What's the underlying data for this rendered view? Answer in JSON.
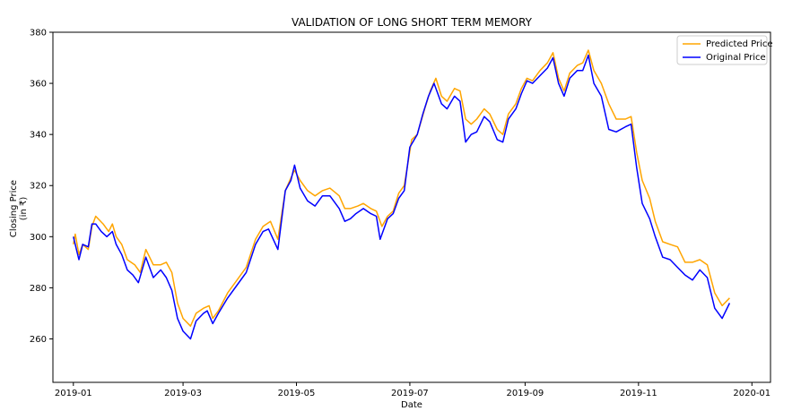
{
  "chart_data": {
    "type": "line",
    "title": "VALIDATION OF LONG SHORT TERM MEMORY",
    "xlabel": "Date",
    "ylabel": "Closing Price",
    "ylabel_unit": "(in ₹)",
    "xlim": [
      "2018-12-21",
      "2020-01-11"
    ],
    "ylim": [
      243,
      380
    ],
    "x_ticks": [
      {
        "value": "2019-01-01",
        "label": "2019-01"
      },
      {
        "value": "2019-03-01",
        "label": "2019-03"
      },
      {
        "value": "2019-05-01",
        "label": "2019-05"
      },
      {
        "value": "2019-07-01",
        "label": "2019-07"
      },
      {
        "value": "2019-09-01",
        "label": "2019-09"
      },
      {
        "value": "2019-11-01",
        "label": "2019-11"
      },
      {
        "value": "2020-01-01",
        "label": "2020-01"
      }
    ],
    "y_ticks": [
      260,
      280,
      300,
      320,
      340,
      360,
      380
    ],
    "legend_position": "top-right",
    "grid": false,
    "series": [
      {
        "name": "Predicted Price",
        "color": "#FFA500",
        "points": [
          [
            "2019-01-01",
            297
          ],
          [
            "2019-01-02",
            301
          ],
          [
            "2019-01-04",
            293
          ],
          [
            "2019-01-06",
            297
          ],
          [
            "2019-01-09",
            295
          ],
          [
            "2019-01-11",
            304
          ],
          [
            "2019-01-13",
            308
          ],
          [
            "2019-01-17",
            305
          ],
          [
            "2019-01-20",
            302
          ],
          [
            "2019-01-22",
            305
          ],
          [
            "2019-01-24",
            300
          ],
          [
            "2019-01-27",
            297
          ],
          [
            "2019-01-30",
            291
          ],
          [
            "2019-02-03",
            289
          ],
          [
            "2019-02-06",
            286
          ],
          [
            "2019-02-09",
            295
          ],
          [
            "2019-02-13",
            289
          ],
          [
            "2019-02-17",
            289
          ],
          [
            "2019-02-20",
            290
          ],
          [
            "2019-02-23",
            286
          ],
          [
            "2019-02-26",
            274
          ],
          [
            "2019-03-01",
            268
          ],
          [
            "2019-03-05",
            265
          ],
          [
            "2019-03-08",
            270
          ],
          [
            "2019-03-12",
            272
          ],
          [
            "2019-03-15",
            273
          ],
          [
            "2019-03-17",
            268
          ],
          [
            "2019-03-20",
            271
          ],
          [
            "2019-03-25",
            278
          ],
          [
            "2019-03-30",
            283
          ],
          [
            "2019-04-04",
            288
          ],
          [
            "2019-04-09",
            299
          ],
          [
            "2019-04-13",
            304
          ],
          [
            "2019-04-17",
            306
          ],
          [
            "2019-04-21",
            299
          ],
          [
            "2019-04-25",
            318
          ],
          [
            "2019-04-28",
            323
          ],
          [
            "2019-04-30",
            326
          ],
          [
            "2019-05-03",
            322
          ],
          [
            "2019-05-07",
            318
          ],
          [
            "2019-05-11",
            316
          ],
          [
            "2019-05-15",
            318
          ],
          [
            "2019-05-19",
            319
          ],
          [
            "2019-05-24",
            316
          ],
          [
            "2019-05-27",
            311
          ],
          [
            "2019-05-30",
            311
          ],
          [
            "2019-06-03",
            312
          ],
          [
            "2019-06-06",
            313
          ],
          [
            "2019-06-10",
            311
          ],
          [
            "2019-06-13",
            310
          ],
          [
            "2019-06-16",
            304
          ],
          [
            "2019-06-19",
            308
          ],
          [
            "2019-06-22",
            310
          ],
          [
            "2019-06-25",
            317
          ],
          [
            "2019-06-28",
            320
          ],
          [
            "2019-07-02",
            338
          ],
          [
            "2019-07-05",
            340
          ],
          [
            "2019-07-09",
            350
          ],
          [
            "2019-07-12",
            357
          ],
          [
            "2019-07-15",
            362
          ],
          [
            "2019-07-18",
            355
          ],
          [
            "2019-07-21",
            353
          ],
          [
            "2019-07-25",
            358
          ],
          [
            "2019-07-28",
            357
          ],
          [
            "2019-07-31",
            346
          ],
          [
            "2019-08-03",
            344
          ],
          [
            "2019-08-06",
            346
          ],
          [
            "2019-08-10",
            350
          ],
          [
            "2019-08-13",
            348
          ],
          [
            "2019-08-17",
            342
          ],
          [
            "2019-08-20",
            340
          ],
          [
            "2019-08-23",
            348
          ],
          [
            "2019-08-27",
            352
          ],
          [
            "2019-08-30",
            358
          ],
          [
            "2019-09-02",
            362
          ],
          [
            "2019-09-05",
            361
          ],
          [
            "2019-09-09",
            365
          ],
          [
            "2019-09-13",
            368
          ],
          [
            "2019-09-16",
            372
          ],
          [
            "2019-09-19",
            362
          ],
          [
            "2019-09-22",
            357
          ],
          [
            "2019-09-25",
            364
          ],
          [
            "2019-09-29",
            367
          ],
          [
            "2019-10-02",
            368
          ],
          [
            "2019-10-05",
            373
          ],
          [
            "2019-10-08",
            365
          ],
          [
            "2019-10-12",
            360
          ],
          [
            "2019-10-16",
            352
          ],
          [
            "2019-10-20",
            346
          ],
          [
            "2019-10-25",
            346
          ],
          [
            "2019-10-28",
            347
          ],
          [
            "2019-10-31",
            333
          ],
          [
            "2019-11-03",
            322
          ],
          [
            "2019-11-07",
            315
          ],
          [
            "2019-11-10",
            306
          ],
          [
            "2019-11-14",
            298
          ],
          [
            "2019-11-18",
            297
          ],
          [
            "2019-11-22",
            296
          ],
          [
            "2019-11-26",
            290
          ],
          [
            "2019-11-30",
            290
          ],
          [
            "2019-12-04",
            291
          ],
          [
            "2019-12-08",
            289
          ],
          [
            "2019-12-12",
            278
          ],
          [
            "2019-12-16",
            273
          ],
          [
            "2019-12-20",
            276
          ]
        ]
      },
      {
        "name": "Original Price",
        "color": "#0000FF",
        "points": [
          [
            "2019-01-01",
            300
          ],
          [
            "2019-01-03",
            294
          ],
          [
            "2019-01-04",
            291
          ],
          [
            "2019-01-06",
            297
          ],
          [
            "2019-01-09",
            296
          ],
          [
            "2019-01-11",
            305
          ],
          [
            "2019-01-13",
            305
          ],
          [
            "2019-01-16",
            302
          ],
          [
            "2019-01-19",
            300
          ],
          [
            "2019-01-22",
            302
          ],
          [
            "2019-01-24",
            297
          ],
          [
            "2019-01-27",
            293
          ],
          [
            "2019-01-30",
            287
          ],
          [
            "2019-02-02",
            285
          ],
          [
            "2019-02-05",
            282
          ],
          [
            "2019-02-09",
            292
          ],
          [
            "2019-02-13",
            284
          ],
          [
            "2019-02-17",
            287
          ],
          [
            "2019-02-20",
            284
          ],
          [
            "2019-02-23",
            279
          ],
          [
            "2019-02-26",
            268
          ],
          [
            "2019-03-01",
            263
          ],
          [
            "2019-03-05",
            260
          ],
          [
            "2019-03-08",
            267
          ],
          [
            "2019-03-12",
            270
          ],
          [
            "2019-03-14",
            271
          ],
          [
            "2019-03-17",
            266
          ],
          [
            "2019-03-20",
            270
          ],
          [
            "2019-03-25",
            276
          ],
          [
            "2019-03-30",
            281
          ],
          [
            "2019-04-04",
            286
          ],
          [
            "2019-04-09",
            297
          ],
          [
            "2019-04-13",
            302
          ],
          [
            "2019-04-16",
            303
          ],
          [
            "2019-04-21",
            295
          ],
          [
            "2019-04-25",
            318
          ],
          [
            "2019-04-28",
            322
          ],
          [
            "2019-04-30",
            328
          ],
          [
            "2019-05-03",
            319
          ],
          [
            "2019-05-07",
            314
          ],
          [
            "2019-05-11",
            312
          ],
          [
            "2019-05-15",
            316
          ],
          [
            "2019-05-19",
            316
          ],
          [
            "2019-05-24",
            311
          ],
          [
            "2019-05-27",
            306
          ],
          [
            "2019-05-30",
            307
          ],
          [
            "2019-06-02",
            309
          ],
          [
            "2019-06-06",
            311
          ],
          [
            "2019-06-10",
            309
          ],
          [
            "2019-06-13",
            308
          ],
          [
            "2019-06-15",
            299
          ],
          [
            "2019-06-19",
            307
          ],
          [
            "2019-06-22",
            309
          ],
          [
            "2019-06-25",
            315
          ],
          [
            "2019-06-28",
            318
          ],
          [
            "2019-07-01",
            335
          ],
          [
            "2019-07-05",
            340
          ],
          [
            "2019-07-08",
            348
          ],
          [
            "2019-07-11",
            355
          ],
          [
            "2019-07-14",
            360
          ],
          [
            "2019-07-18",
            352
          ],
          [
            "2019-07-21",
            350
          ],
          [
            "2019-07-25",
            355
          ],
          [
            "2019-07-28",
            353
          ],
          [
            "2019-07-31",
            337
          ],
          [
            "2019-08-03",
            340
          ],
          [
            "2019-08-06",
            341
          ],
          [
            "2019-08-10",
            347
          ],
          [
            "2019-08-13",
            345
          ],
          [
            "2019-08-17",
            338
          ],
          [
            "2019-08-20",
            337
          ],
          [
            "2019-08-23",
            346
          ],
          [
            "2019-08-27",
            350
          ],
          [
            "2019-08-30",
            356
          ],
          [
            "2019-09-02",
            361
          ],
          [
            "2019-09-05",
            360
          ],
          [
            "2019-09-09",
            363
          ],
          [
            "2019-09-13",
            366
          ],
          [
            "2019-09-16",
            370
          ],
          [
            "2019-09-19",
            360
          ],
          [
            "2019-09-22",
            355
          ],
          [
            "2019-09-25",
            362
          ],
          [
            "2019-09-29",
            365
          ],
          [
            "2019-10-02",
            365
          ],
          [
            "2019-10-05",
            371
          ],
          [
            "2019-10-08",
            360
          ],
          [
            "2019-10-12",
            355
          ],
          [
            "2019-10-16",
            342
          ],
          [
            "2019-10-20",
            341
          ],
          [
            "2019-10-25",
            343
          ],
          [
            "2019-10-28",
            344
          ],
          [
            "2019-10-31",
            327
          ],
          [
            "2019-11-03",
            313
          ],
          [
            "2019-11-07",
            307
          ],
          [
            "2019-11-10",
            300
          ],
          [
            "2019-11-14",
            292
          ],
          [
            "2019-11-18",
            291
          ],
          [
            "2019-11-22",
            288
          ],
          [
            "2019-11-26",
            285
          ],
          [
            "2019-11-30",
            283
          ],
          [
            "2019-12-04",
            287
          ],
          [
            "2019-12-08",
            284
          ],
          [
            "2019-12-12",
            272
          ],
          [
            "2019-12-16",
            268
          ],
          [
            "2019-12-20",
            274
          ]
        ]
      }
    ]
  }
}
